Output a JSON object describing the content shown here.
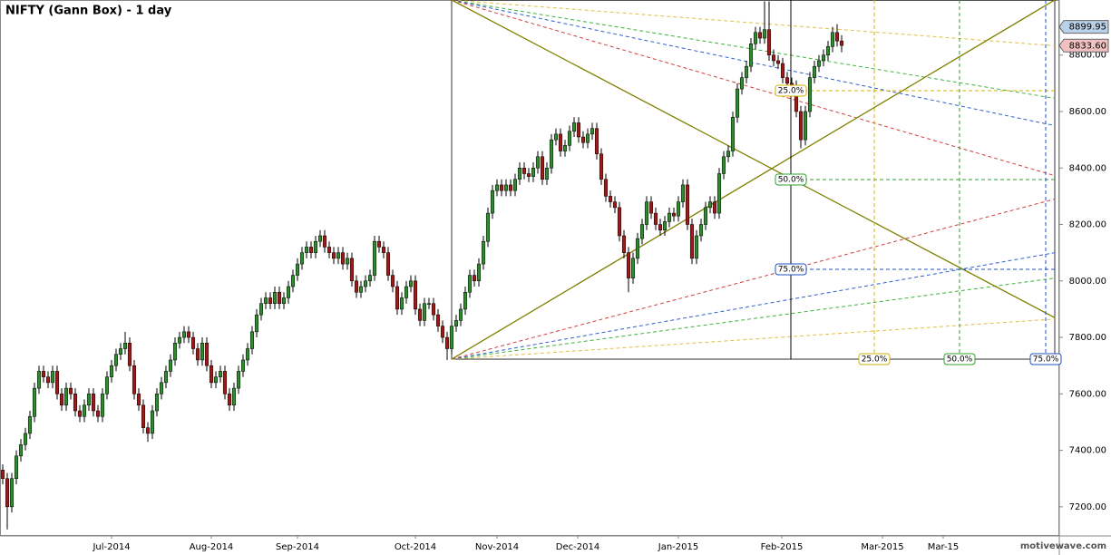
{
  "chart_data": {
    "type": "candlestick",
    "title": "NIFTY (Gann Box) - 1 day",
    "watermark": "motivewave.com",
    "xlim": [
      -0.6,
      233
    ],
    "xticks": [
      {
        "value": 24,
        "label": "Jul-2014"
      },
      {
        "value": 46,
        "label": "Aug-2014"
      },
      {
        "value": 65,
        "label": "Sep-2014"
      },
      {
        "value": 91,
        "label": "Oct-2014"
      },
      {
        "value": 109,
        "label": "Nov-2014"
      },
      {
        "value": 126.8,
        "label": "Dec-2014"
      },
      {
        "value": 149,
        "label": "Jan-2015"
      },
      {
        "value": 171.8,
        "label": "Feb-2015"
      },
      {
        "value": 194,
        "label": "Mar-2015"
      },
      {
        "value": 207.4,
        "label": "Mar-15"
      }
    ],
    "ylim": [
      7100,
      8995
    ],
    "yticks": [
      {
        "value": 7200,
        "label": "7200.00"
      },
      {
        "value": 7400,
        "label": "7400.00"
      },
      {
        "value": 7600,
        "label": "7600.00"
      },
      {
        "value": 7800,
        "label": "7800.00"
      },
      {
        "value": 8000,
        "label": "8000.00"
      },
      {
        "value": 8200,
        "label": "8200.00"
      },
      {
        "value": 8400,
        "label": "8400.00"
      },
      {
        "value": 8600,
        "label": "8600.00"
      },
      {
        "value": 8800,
        "label": "8800.00"
      }
    ],
    "up_color": "#2e8b2e",
    "down_color": "#a01818",
    "open": [
      7330,
      7300,
      7200,
      7300,
      7380,
      7420,
      7460,
      7520,
      7620,
      7680,
      7660,
      7640,
      7680,
      7600,
      7560,
      7620,
      7600,
      7540,
      7520,
      7560,
      7600,
      7540,
      7520,
      7600,
      7660,
      7700,
      7740,
      7760,
      7780,
      7700,
      7600,
      7560,
      7480,
      7460,
      7540,
      7600,
      7640,
      7680,
      7720,
      7780,
      7800,
      7820,
      7800,
      7760,
      7720,
      7780,
      7700,
      7640,
      7660,
      7680,
      7600,
      7560,
      7620,
      7680,
      7720,
      7760,
      7820,
      7880,
      7920,
      7940,
      7920,
      7960,
      7920,
      7940,
      7980,
      8020,
      8060,
      8100,
      8120,
      8100,
      8140,
      8160,
      8120,
      8100,
      8080,
      8100,
      8060,
      8080,
      8000,
      7960,
      7980,
      8000,
      8020,
      8140,
      8120,
      8100,
      8020,
      7980,
      7900,
      7940,
      7980,
      8000,
      7900,
      7860,
      7920,
      7920,
      7880,
      7840,
      7800,
      7760,
      7840,
      7860,
      7900,
      7960,
      8020,
      8000,
      8060,
      8140,
      8240,
      8320,
      8340,
      8320,
      8340,
      8320,
      8360,
      8400,
      8380,
      8370,
      8400,
      8440,
      8360,
      8400,
      8500,
      8520,
      8460,
      8480,
      8530,
      8560,
      8510,
      8490,
      8520,
      8540,
      8450,
      8360,
      8300,
      8280,
      8260,
      8160,
      8100,
      8010,
      8080,
      8150,
      8200,
      8280,
      8240,
      8200,
      8180,
      8210,
      8240,
      8230,
      8280,
      8340,
      8200,
      8080,
      8160,
      8200,
      8260,
      8280,
      8240,
      8380,
      8440,
      8460,
      8580,
      8680,
      8720,
      8760,
      8840,
      8880,
      8860,
      8890,
      8800,
      8780,
      8770,
      8720,
      8700,
      8690,
      8600,
      8500,
      8600,
      8720,
      8760,
      8780,
      8800,
      8830,
      8880,
      8850
    ],
    "high": [
      7350,
      7320,
      7320,
      7400,
      7440,
      7480,
      7540,
      7640,
      7700,
      7700,
      7680,
      7700,
      7700,
      7620,
      7640,
      7640,
      7620,
      7560,
      7580,
      7620,
      7620,
      7560,
      7620,
      7680,
      7720,
      7760,
      7780,
      7820,
      7800,
      7720,
      7620,
      7580,
      7500,
      7560,
      7620,
      7660,
      7700,
      7740,
      7800,
      7820,
      7840,
      7840,
      7820,
      7780,
      7800,
      7800,
      7720,
      7680,
      7700,
      7700,
      7620,
      7640,
      7700,
      7740,
      7780,
      7840,
      7900,
      7940,
      7960,
      7960,
      7980,
      7980,
      7960,
      8000,
      8040,
      8080,
      8120,
      8140,
      8140,
      8160,
      8180,
      8180,
      8140,
      8120,
      8120,
      8120,
      8100,
      8100,
      8020,
      8000,
      8020,
      8040,
      8160,
      8160,
      8140,
      8120,
      8040,
      8000,
      7960,
      8000,
      8020,
      8020,
      7920,
      7940,
      7940,
      7940,
      7900,
      7860,
      7820,
      7860,
      7880,
      7920,
      7980,
      8040,
      8040,
      8080,
      8160,
      8260,
      8340,
      8360,
      8360,
      8360,
      8360,
      8380,
      8420,
      8420,
      8400,
      8420,
      8460,
      8460,
      8420,
      8520,
      8540,
      8540,
      8500,
      8550,
      8580,
      8580,
      8530,
      8540,
      8560,
      8560,
      8470,
      8380,
      8320,
      8300,
      8280,
      8180,
      8120,
      8100,
      8170,
      8220,
      8300,
      8300,
      8260,
      8220,
      8230,
      8260,
      8260,
      8300,
      8360,
      8360,
      8220,
      8180,
      8220,
      8280,
      8300,
      8300,
      8400,
      8460,
      8480,
      8600,
      8700,
      8740,
      8780,
      8860,
      8900,
      8900,
      8990,
      8990,
      8820,
      8800,
      8790,
      8740,
      8720,
      8710,
      8620,
      8620,
      8740,
      8780,
      8800,
      8820,
      8850,
      8900,
      8910,
      8870
    ],
    "low": [
      7280,
      7120,
      7180,
      7280,
      7360,
      7400,
      7440,
      7500,
      7600,
      7640,
      7620,
      7620,
      7580,
      7540,
      7540,
      7580,
      7520,
      7500,
      7500,
      7540,
      7520,
      7500,
      7500,
      7580,
      7640,
      7680,
      7720,
      7740,
      7680,
      7580,
      7540,
      7460,
      7430,
      7440,
      7520,
      7580,
      7620,
      7660,
      7700,
      7760,
      7780,
      7780,
      7740,
      7700,
      7700,
      7680,
      7620,
      7620,
      7640,
      7580,
      7540,
      7540,
      7600,
      7660,
      7700,
      7740,
      7800,
      7860,
      7900,
      7900,
      7900,
      7900,
      7900,
      7920,
      7960,
      8000,
      8040,
      8080,
      8080,
      8080,
      8120,
      8100,
      8080,
      8060,
      8060,
      8040,
      8040,
      7980,
      7940,
      7940,
      7960,
      7980,
      8000,
      8100,
      8080,
      8000,
      7960,
      7880,
      7880,
      7920,
      7960,
      7880,
      7840,
      7840,
      7900,
      7860,
      7820,
      7780,
      7720,
      7740,
      7820,
      7840,
      7880,
      7940,
      7980,
      7980,
      8040,
      8120,
      8220,
      8300,
      8300,
      8300,
      8300,
      8300,
      8340,
      8360,
      8350,
      8350,
      8380,
      8340,
      8340,
      8380,
      8480,
      8440,
      8440,
      8460,
      8510,
      8490,
      8470,
      8470,
      8500,
      8430,
      8340,
      8280,
      8260,
      8240,
      8140,
      8080,
      7960,
      7990,
      8060,
      8130,
      8180,
      8220,
      8180,
      8160,
      8160,
      8190,
      8210,
      8210,
      8260,
      8180,
      8060,
      8060,
      8140,
      8180,
      8240,
      8220,
      8220,
      8360,
      8420,
      8440,
      8560,
      8660,
      8700,
      8740,
      8820,
      8840,
      8840,
      8780,
      8760,
      8750,
      8700,
      8680,
      8670,
      8580,
      8470,
      8480,
      8580,
      8700,
      8740,
      8760,
      8780,
      8810,
      8830,
      8810
    ],
    "close": [
      7300,
      7200,
      7300,
      7380,
      7420,
      7460,
      7520,
      7620,
      7680,
      7660,
      7640,
      7680,
      7600,
      7560,
      7620,
      7600,
      7540,
      7520,
      7560,
      7600,
      7540,
      7520,
      7600,
      7660,
      7700,
      7740,
      7760,
      7780,
      7700,
      7600,
      7560,
      7480,
      7460,
      7540,
      7600,
      7640,
      7680,
      7720,
      7780,
      7800,
      7820,
      7800,
      7760,
      7720,
      7780,
      7700,
      7640,
      7660,
      7680,
      7600,
      7560,
      7620,
      7680,
      7720,
      7760,
      7820,
      7880,
      7920,
      7940,
      7920,
      7960,
      7920,
      7940,
      7980,
      8020,
      8060,
      8100,
      8120,
      8100,
      8140,
      8160,
      8120,
      8100,
      8080,
      8100,
      8060,
      8080,
      8000,
      7960,
      7980,
      8000,
      8020,
      8140,
      8120,
      8100,
      8020,
      7980,
      7900,
      7940,
      7980,
      8000,
      7900,
      7860,
      7920,
      7920,
      7880,
      7840,
      7800,
      7760,
      7840,
      7860,
      7900,
      7960,
      8020,
      8000,
      8060,
      8140,
      8240,
      8320,
      8340,
      8320,
      8340,
      8320,
      8360,
      8400,
      8380,
      8370,
      8400,
      8440,
      8360,
      8400,
      8500,
      8520,
      8460,
      8480,
      8530,
      8560,
      8510,
      8490,
      8520,
      8540,
      8450,
      8360,
      8300,
      8280,
      8260,
      8160,
      8100,
      8010,
      8080,
      8150,
      8200,
      8280,
      8240,
      8200,
      8180,
      8210,
      8240,
      8230,
      8280,
      8340,
      8200,
      8080,
      8160,
      8200,
      8260,
      8280,
      8240,
      8380,
      8440,
      8460,
      8580,
      8680,
      8720,
      8760,
      8840,
      8880,
      8860,
      8890,
      8800,
      8780,
      8770,
      8720,
      8700,
      8690,
      8600,
      8500,
      8600,
      8720,
      8760,
      8780,
      8800,
      8830,
      8880,
      8850,
      8834
    ],
    "price_markers": [
      {
        "value": 8899.95,
        "color": "#b8d0e8"
      },
      {
        "value": 8833.6,
        "label": "8833.60",
        "color": "#f2c0c0"
      }
    ],
    "gann_box": {
      "start": 99,
      "end": 232,
      "low": 7723,
      "high": 8995,
      "cursor": 173.8,
      "line_color": "#808000",
      "price_levels": [
        {
          "value": 8674,
          "label": "25.0%",
          "color": "#d4b000"
        },
        {
          "value": 8359,
          "label": "50.0%",
          "color": "#2ca02c"
        },
        {
          "value": 8041,
          "label": "75.0%",
          "color": "#2050c0"
        }
      ],
      "time_levels": [
        {
          "value": 192.2,
          "label": "25.0%",
          "color": "#d4b000"
        },
        {
          "value": 211,
          "label": "50.0%",
          "color": "#2ca02c"
        },
        {
          "value": 230,
          "label": "75.0%",
          "color": "#2050c0"
        }
      ],
      "fans_from_low": [
        {
          "end": 7865,
          "color": "#e0c040"
        },
        {
          "end": 8010,
          "color": "#3cb43c"
        },
        {
          "end": 8100,
          "color": "#3060d0"
        },
        {
          "end": 8290,
          "color": "#d04040"
        }
      ],
      "fans_from_high": [
        {
          "end": 8833,
          "color": "#e0c040"
        },
        {
          "end": 8647,
          "color": "#3cb43c"
        },
        {
          "end": 8550,
          "color": "#3060d0"
        },
        {
          "end": 8373,
          "color": "#d04040"
        }
      ],
      "diagonal_ends": [
        8995,
        7870
      ]
    }
  }
}
